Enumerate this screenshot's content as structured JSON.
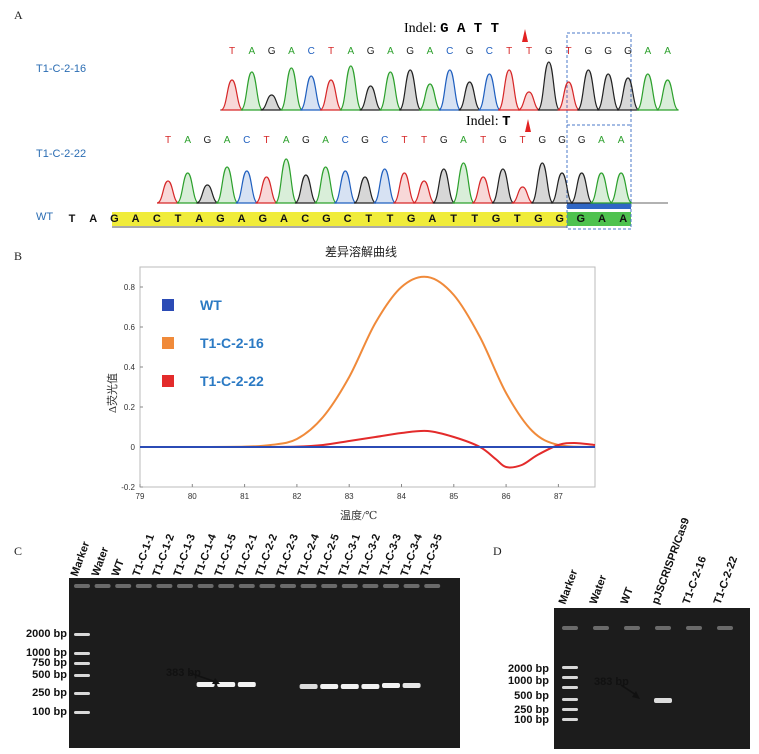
{
  "panel_a": {
    "label": "A",
    "indel1": {
      "prefix": "Indel:",
      "bases": "G A T T"
    },
    "indel2": {
      "prefix": "Indel:",
      "bases": "T"
    },
    "samples": [
      "T1-C-2-16",
      "T1-C-2-22",
      "WT"
    ],
    "seq1": [
      "T",
      "A",
      "G",
      "A",
      "C",
      "T",
      "A",
      "G",
      "A",
      "G",
      "A",
      "C",
      "G",
      "C",
      "T",
      "T",
      "G",
      "T",
      "G",
      "G",
      "G",
      "A",
      "A"
    ],
    "seq2": [
      "T",
      "A",
      "G",
      "A",
      "C",
      "T",
      "A",
      "G",
      "A",
      "C",
      "G",
      "C",
      "T",
      "T",
      "G",
      "A",
      "T",
      "G",
      "T",
      "G",
      "G",
      "G",
      "A",
      "A"
    ],
    "wt_seq": [
      "T",
      "A",
      "G",
      "A",
      "C",
      "T",
      "A",
      "G",
      "A",
      "G",
      "A",
      "C",
      "G",
      "C",
      "T",
      "T",
      "G",
      "A",
      "T",
      "T",
      "G",
      "T",
      "G",
      "G",
      "G",
      "A",
      "A"
    ],
    "colors": {
      "A": "#2ca02c",
      "T": "#d62728",
      "G": "#222222",
      "C": "#1f5fbf"
    }
  },
  "panel_b": {
    "label": "B",
    "title": "差异溶解曲线",
    "xlabel": "温度/℃",
    "ylabel": "Δ荧光值",
    "legend": [
      "WT",
      "T1-C-2-16",
      "T1-C-2-22"
    ],
    "chart_data": {
      "type": "line",
      "title": "差异溶解曲线",
      "xlabel": "温度/℃",
      "ylabel": "Δ荧光值",
      "xlim": [
        79,
        87.7
      ],
      "ylim": [
        -0.2,
        0.9
      ],
      "xticks": [
        79,
        80,
        81,
        82,
        83,
        84,
        85,
        86,
        87
      ],
      "yticks": [
        "0.8",
        "0.6",
        "0.4",
        "0.2",
        "0",
        "-0.2"
      ],
      "series": [
        {
          "name": "WT",
          "color": "#2b4bb5",
          "x": [
            79,
            80,
            81,
            82,
            83,
            84,
            85,
            86,
            87,
            87.7
          ],
          "y": [
            0,
            0,
            0,
            0,
            0,
            0,
            0,
            0,
            0,
            0
          ]
        },
        {
          "name": "T1-C-2-16",
          "color": "#f08a3a",
          "x": [
            79,
            80,
            81,
            81.5,
            82,
            82.5,
            83,
            83.5,
            84,
            84.5,
            85,
            85.5,
            86,
            86.5,
            87,
            87.7
          ],
          "y": [
            0,
            0,
            0.002,
            0.01,
            0.04,
            0.15,
            0.35,
            0.62,
            0.8,
            0.85,
            0.76,
            0.55,
            0.27,
            0.08,
            0.01,
            0
          ]
        },
        {
          "name": "T1-C-2-22",
          "color": "#e32b2b",
          "x": [
            79,
            81,
            82,
            82.5,
            83,
            83.5,
            84,
            84.5,
            85,
            85.5,
            85.8,
            86,
            86.3,
            86.6,
            87,
            87.3,
            87.7
          ],
          "y": [
            0,
            0,
            0.002,
            0.01,
            0.03,
            0.05,
            0.07,
            0.08,
            0.05,
            0,
            -0.06,
            -0.1,
            -0.09,
            -0.04,
            0.01,
            0.02,
            0.01
          ]
        }
      ]
    }
  },
  "panel_c": {
    "label": "C",
    "lanes": [
      "Marker",
      "Water",
      "WT",
      "T1-C-1-1",
      "T1-C-1-2",
      "T1-C-1-3",
      "T1-C-1-4",
      "T1-C-1-5",
      "T1-C-2-1",
      "T1-C-2-2",
      "T1-C-2-3",
      "T1-C-2-4",
      "T1-C-2-5",
      "T1-C-3-1",
      "T1-C-3-2",
      "T1-C-3-3",
      "T1-C-3-4",
      "T1-C-3-5"
    ],
    "markers": [
      "2000 bp",
      "1000 bp",
      "750 bp",
      "500 bp",
      "250 bp",
      "100 bp"
    ],
    "band_label": "383 bp"
  },
  "panel_d": {
    "label": "D",
    "lanes": [
      "Marker",
      "Water",
      "WT",
      "pJSCRISPR/Cas9",
      "T1-C-2-16",
      "T1-C-2-22"
    ],
    "markers": [
      "2000 bp",
      "1000 bp",
      "500 bp",
      "250 bp",
      "100 bp"
    ],
    "band_label": "383 bp"
  }
}
